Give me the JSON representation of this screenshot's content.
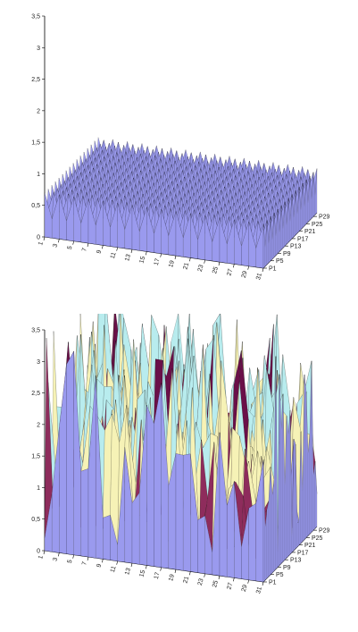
{
  "colors": {
    "band0": "#9a9aee",
    "band1": "#8e2c5c",
    "band2": "#f6f2b6",
    "band3": "#b8ecee",
    "band4": "#6a0f48",
    "band5": "#f07070",
    "axis": "#000000"
  },
  "chart_data": [
    {
      "type": "surface",
      "title": "",
      "xlabel": "",
      "ylabel": "",
      "zlabel": "",
      "x_ticks": [
        "1",
        "3",
        "5",
        "7",
        "9",
        "11",
        "13",
        "15",
        "17",
        "19",
        "21",
        "23",
        "25",
        "27",
        "29",
        "31"
      ],
      "y_ticks": [
        "P1",
        "P5",
        "P9",
        "P13",
        "P17",
        "P21",
        "P25",
        "P29"
      ],
      "z_ticks": [
        "0",
        "0,5",
        "1",
        "1,5",
        "2",
        "2,5",
        "3",
        "3,5"
      ],
      "zlim": [
        0,
        3.5
      ],
      "grid_size": [
        31,
        31
      ],
      "pattern": "alternating",
      "z_low": 0.3,
      "z_high": 0.7,
      "grid": false,
      "legend": "none"
    },
    {
      "type": "surface",
      "title": "",
      "xlabel": "",
      "ylabel": "",
      "zlabel": "",
      "x_ticks": [
        "1",
        "3",
        "5",
        "7",
        "9",
        "11",
        "13",
        "15",
        "17",
        "19",
        "21",
        "23",
        "25",
        "27",
        "29",
        "31"
      ],
      "y_ticks": [
        "P1",
        "P5",
        "P9",
        "P13",
        "P17",
        "P21",
        "P25",
        "P29"
      ],
      "z_ticks": [
        "0",
        "0,5",
        "1",
        "1,5",
        "2",
        "2,5",
        "3",
        "3,5"
      ],
      "zlim": [
        0,
        3.5
      ],
      "grid_size": [
        31,
        31
      ],
      "pattern": "irregular",
      "z_min": 0.2,
      "z_max": 3.4,
      "z_mean": 1.7,
      "grid": false,
      "legend": "none"
    }
  ]
}
